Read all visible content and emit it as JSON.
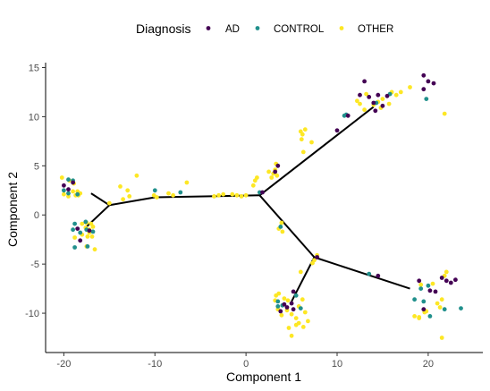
{
  "chart_data": {
    "type": "scatter",
    "title": "",
    "xlabel": "Component 1",
    "ylabel": "Component 2",
    "xlim": [
      -22,
      26
    ],
    "ylim": [
      -14,
      15.5
    ],
    "xticks": [
      -20,
      -10,
      0,
      10,
      20
    ],
    "yticks": [
      -10,
      -5,
      0,
      5,
      10,
      15
    ],
    "grid": false,
    "legend": {
      "title": "Diagnosis",
      "position": "top",
      "entries": [
        {
          "label": "AD",
          "color": "#440154"
        },
        {
          "label": "CONTROL",
          "color": "#21908C"
        },
        {
          "label": "OTHER",
          "color": "#FDE725"
        }
      ]
    },
    "trajectory": [
      [
        [
          -17,
          2.2
        ],
        [
          -15,
          1.0
        ],
        [
          -10,
          1.8
        ],
        [
          1.5,
          2.0
        ]
      ],
      [
        [
          -17.5,
          -1.2
        ],
        [
          -15,
          1.0
        ]
      ],
      [
        [
          1.5,
          2.0
        ],
        [
          14,
          11
        ]
      ],
      [
        [
          1.5,
          2.0
        ],
        [
          7.5,
          -4.3
        ],
        [
          18,
          -7.5
        ]
      ],
      [
        [
          7.5,
          -4.3
        ],
        [
          5,
          -8.8
        ]
      ]
    ],
    "series": [
      {
        "name": "AD",
        "color": "#440154",
        "points": [
          [
            -20,
            3
          ],
          [
            -19,
            3.3
          ],
          [
            -19.5,
            2.6
          ],
          [
            -18.2,
            -2.6
          ],
          [
            -18.5,
            -1.4
          ],
          [
            -17.2,
            -1.6
          ],
          [
            1.8,
            2.3
          ],
          [
            3.2,
            4.4
          ],
          [
            3.5,
            5
          ],
          [
            10,
            8.6
          ],
          [
            11.2,
            10.1
          ],
          [
            13,
            13.6
          ],
          [
            13.5,
            12
          ],
          [
            14,
            11.4
          ],
          [
            14.5,
            12.2
          ],
          [
            15,
            11.1
          ],
          [
            15.5,
            12.1
          ],
          [
            19.5,
            14.2
          ],
          [
            20,
            13.6
          ],
          [
            20.6,
            13.4
          ],
          [
            19.5,
            12.8
          ],
          [
            14.2,
            10.6
          ],
          [
            12.5,
            12.2
          ],
          [
            5.2,
            -7.8
          ],
          [
            4.5,
            -9.4
          ],
          [
            4.2,
            -9.1
          ],
          [
            5.2,
            -9.6
          ],
          [
            3.8,
            -9.8
          ],
          [
            14.5,
            -6.2
          ],
          [
            19,
            -6.7
          ],
          [
            20.8,
            -7.8
          ],
          [
            21.5,
            -6.4
          ],
          [
            22,
            -6.7
          ],
          [
            22.5,
            -6.9
          ],
          [
            23,
            -6.6
          ],
          [
            20.2,
            -7.7
          ],
          [
            19.5,
            -9.6
          ],
          [
            7.8,
            -4.3
          ],
          [
            5,
            -9
          ]
        ]
      },
      {
        "name": "CONTROL",
        "color": "#21908C",
        "points": [
          [
            -20,
            2.5
          ],
          [
            -19.5,
            3.6
          ],
          [
            -19,
            3.5
          ],
          [
            -19.5,
            2.2
          ],
          [
            -18.5,
            2.1
          ],
          [
            -18.8,
            -0.9
          ],
          [
            -17.5,
            -1.5
          ],
          [
            -16.8,
            -1.7
          ],
          [
            -19,
            -1.5
          ],
          [
            -18.8,
            -3.3
          ],
          [
            -17.4,
            -3.2
          ],
          [
            -17.6,
            -0.7
          ],
          [
            -18.2,
            -1.8
          ],
          [
            -10,
            2.5
          ],
          [
            -7.2,
            2.3
          ],
          [
            3.8,
            -1.2
          ],
          [
            1.5,
            2.3
          ],
          [
            11,
            10.2
          ],
          [
            10.8,
            10.1
          ],
          [
            14.3,
            11.4
          ],
          [
            15.8,
            12.3
          ],
          [
            19.8,
            11.8
          ],
          [
            3.5,
            -8.8
          ],
          [
            4,
            -9.2
          ],
          [
            5.5,
            -8.2
          ],
          [
            6,
            -9.5
          ],
          [
            3.5,
            -9.3
          ],
          [
            13.5,
            -6
          ],
          [
            18.5,
            -8.6
          ],
          [
            19.5,
            -8.8
          ],
          [
            20.2,
            -10.3
          ],
          [
            21.8,
            -9.6
          ],
          [
            23.6,
            -9.5
          ],
          [
            19.2,
            -7.5
          ],
          [
            20,
            -7.2
          ]
        ]
      },
      {
        "name": "OTHER",
        "color": "#FDE725",
        "points": [
          [
            -20.2,
            3.8
          ],
          [
            -20,
            2.1
          ],
          [
            -19.5,
            1.9
          ],
          [
            -19,
            2.4
          ],
          [
            -18.7,
            2.0
          ],
          [
            -18.5,
            2.4
          ],
          [
            -18.4,
            2.0
          ],
          [
            -18.9,
            3.2
          ],
          [
            -19.4,
            3.5
          ],
          [
            -18.2,
            2.2
          ],
          [
            -18,
            -0.9
          ],
          [
            -17.5,
            -0.8
          ],
          [
            -17.2,
            -1.5
          ],
          [
            -16.9,
            -2.2
          ],
          [
            -16.6,
            -3.5
          ],
          [
            -17.2,
            -1.8
          ],
          [
            -18,
            -2
          ],
          [
            -17.6,
            -1.3
          ],
          [
            -18.8,
            -2.3
          ],
          [
            -17.5,
            -3.2
          ],
          [
            -17,
            -0.9
          ],
          [
            -16.8,
            -1.2
          ],
          [
            -17.4,
            -2.2
          ],
          [
            -15,
            1.2
          ],
          [
            -13.5,
            1.6
          ],
          [
            -13,
            2.5
          ],
          [
            -12.8,
            1.9
          ],
          [
            -13.8,
            2.9
          ],
          [
            -12,
            4
          ],
          [
            -10.1,
            2
          ],
          [
            -9.8,
            1.8
          ],
          [
            -8.5,
            2.2
          ],
          [
            -8,
            2
          ],
          [
            -6.5,
            3.3
          ],
          [
            -3.5,
            1.9
          ],
          [
            -3,
            2
          ],
          [
            -2.5,
            2.1
          ],
          [
            -1.5,
            2.1
          ],
          [
            -1,
            2
          ],
          [
            0,
            2
          ],
          [
            -0.5,
            1.9
          ],
          [
            1,
            3.5
          ],
          [
            1.2,
            3.8
          ],
          [
            0.8,
            3
          ],
          [
            2.5,
            4.4
          ],
          [
            2.8,
            3.8
          ],
          [
            3,
            4.2
          ],
          [
            3.2,
            4.6
          ],
          [
            3.4,
            4
          ],
          [
            3.3,
            5.2
          ],
          [
            3.6,
            -1.4
          ],
          [
            4,
            -1.7
          ],
          [
            3.9,
            -0.8
          ],
          [
            6.5,
            8.7
          ],
          [
            6.2,
            8.2
          ],
          [
            6.1,
            7.7
          ],
          [
            7.2,
            7.4
          ],
          [
            6.3,
            6.4
          ],
          [
            6,
            8.5
          ],
          [
            12.5,
            11.3
          ],
          [
            13,
            10.7
          ],
          [
            14,
            11.2
          ],
          [
            14.5,
            11.5
          ],
          [
            15,
            11.8
          ],
          [
            15.7,
            11.3
          ],
          [
            16,
            12.5
          ],
          [
            17,
            12.5
          ],
          [
            18,
            13
          ],
          [
            16.5,
            12.2
          ],
          [
            13.2,
            12.3
          ],
          [
            14.8,
            10.9
          ],
          [
            12.2,
            11.6
          ],
          [
            21.8,
            10.3
          ],
          [
            6,
            -5.8
          ],
          [
            7.5,
            -4.6
          ],
          [
            7.3,
            -4.9
          ],
          [
            7.8,
            -4.1
          ],
          [
            3.3,
            -8.2
          ],
          [
            3.6,
            -8
          ],
          [
            4.2,
            -8.5
          ],
          [
            4.5,
            -9.7
          ],
          [
            5,
            -10.1
          ],
          [
            5.5,
            -10.5
          ],
          [
            5.8,
            -11
          ],
          [
            6.3,
            -11.4
          ],
          [
            6.5,
            -9.9
          ],
          [
            6.8,
            -10.8
          ],
          [
            5.5,
            -11.2
          ],
          [
            5,
            -12.3
          ],
          [
            4.7,
            -11.5
          ],
          [
            3.9,
            -10.2
          ],
          [
            3.5,
            -9.6
          ],
          [
            4.6,
            -8.7
          ],
          [
            5.8,
            -9.3
          ],
          [
            6.2,
            -8.6
          ],
          [
            3.2,
            -8.7
          ],
          [
            18.5,
            -10.3
          ],
          [
            19,
            -10.5
          ],
          [
            19.8,
            -9.8
          ],
          [
            21,
            -9
          ],
          [
            21.3,
            -9.4
          ],
          [
            21.5,
            -8.6
          ],
          [
            21.8,
            -6.2
          ],
          [
            22,
            -5.8
          ],
          [
            21.5,
            -12.5
          ],
          [
            20.5,
            -7
          ],
          [
            19.2,
            -7.1
          ],
          [
            19,
            -10.4
          ],
          [
            19.6,
            -9.9
          ]
        ]
      }
    ]
  }
}
